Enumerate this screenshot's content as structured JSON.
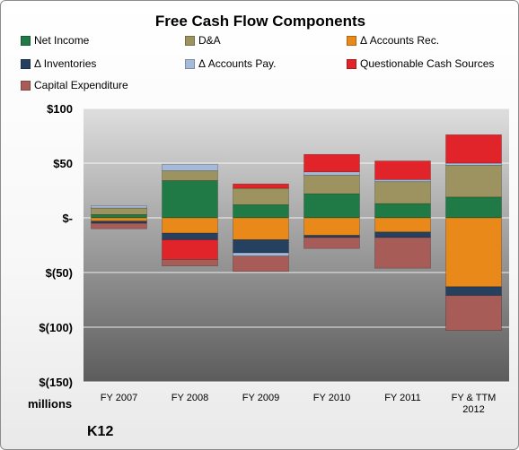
{
  "company": "K12",
  "chart_data": {
    "type": "bar",
    "stacked": true,
    "title": "Free Cash Flow Components",
    "unit_label": "millions",
    "categories": [
      "FY 2007",
      "FY 2008",
      "FY 2009",
      "FY 2010",
      "FY 2011",
      "FY & TTM 2012"
    ],
    "ylim": [
      -150,
      100
    ],
    "yticks": [
      100,
      50,
      0,
      -50,
      -100,
      -150
    ],
    "ytick_labels": [
      "$100",
      "$50",
      "$-",
      "$(50)",
      "$(100)",
      "$(150)"
    ],
    "grid": true,
    "legend_position": "top",
    "series": [
      {
        "name": "Net Income",
        "color": "#1f7a45",
        "values": [
          3,
          34,
          12,
          22,
          13,
          19
        ]
      },
      {
        "name": "D&A",
        "color": "#9c9360",
        "values": [
          6,
          9,
          15,
          17,
          20,
          29
        ]
      },
      {
        "name": "Δ Accounts Rec.",
        "color": "#e9891a",
        "values": [
          -3,
          -14,
          -20,
          -16,
          -13,
          -63
        ]
      },
      {
        "name": "Δ Inventories",
        "color": "#264060",
        "values": [
          -2,
          -6,
          -12,
          -2,
          -5,
          -8
        ]
      },
      {
        "name": "Δ Accounts Pay.",
        "color": "#a5bad8",
        "values": [
          2,
          6,
          -3,
          3,
          2,
          2
        ]
      },
      {
        "name": "Questionable Cash Sources",
        "color": "#e0242a",
        "values": [
          0,
          -18,
          4,
          16,
          17,
          26
        ]
      },
      {
        "name": "Capital Expenditure",
        "color": "#a85c58",
        "values": [
          -5,
          -6,
          -14,
          -10,
          -28,
          -32
        ]
      }
    ]
  }
}
